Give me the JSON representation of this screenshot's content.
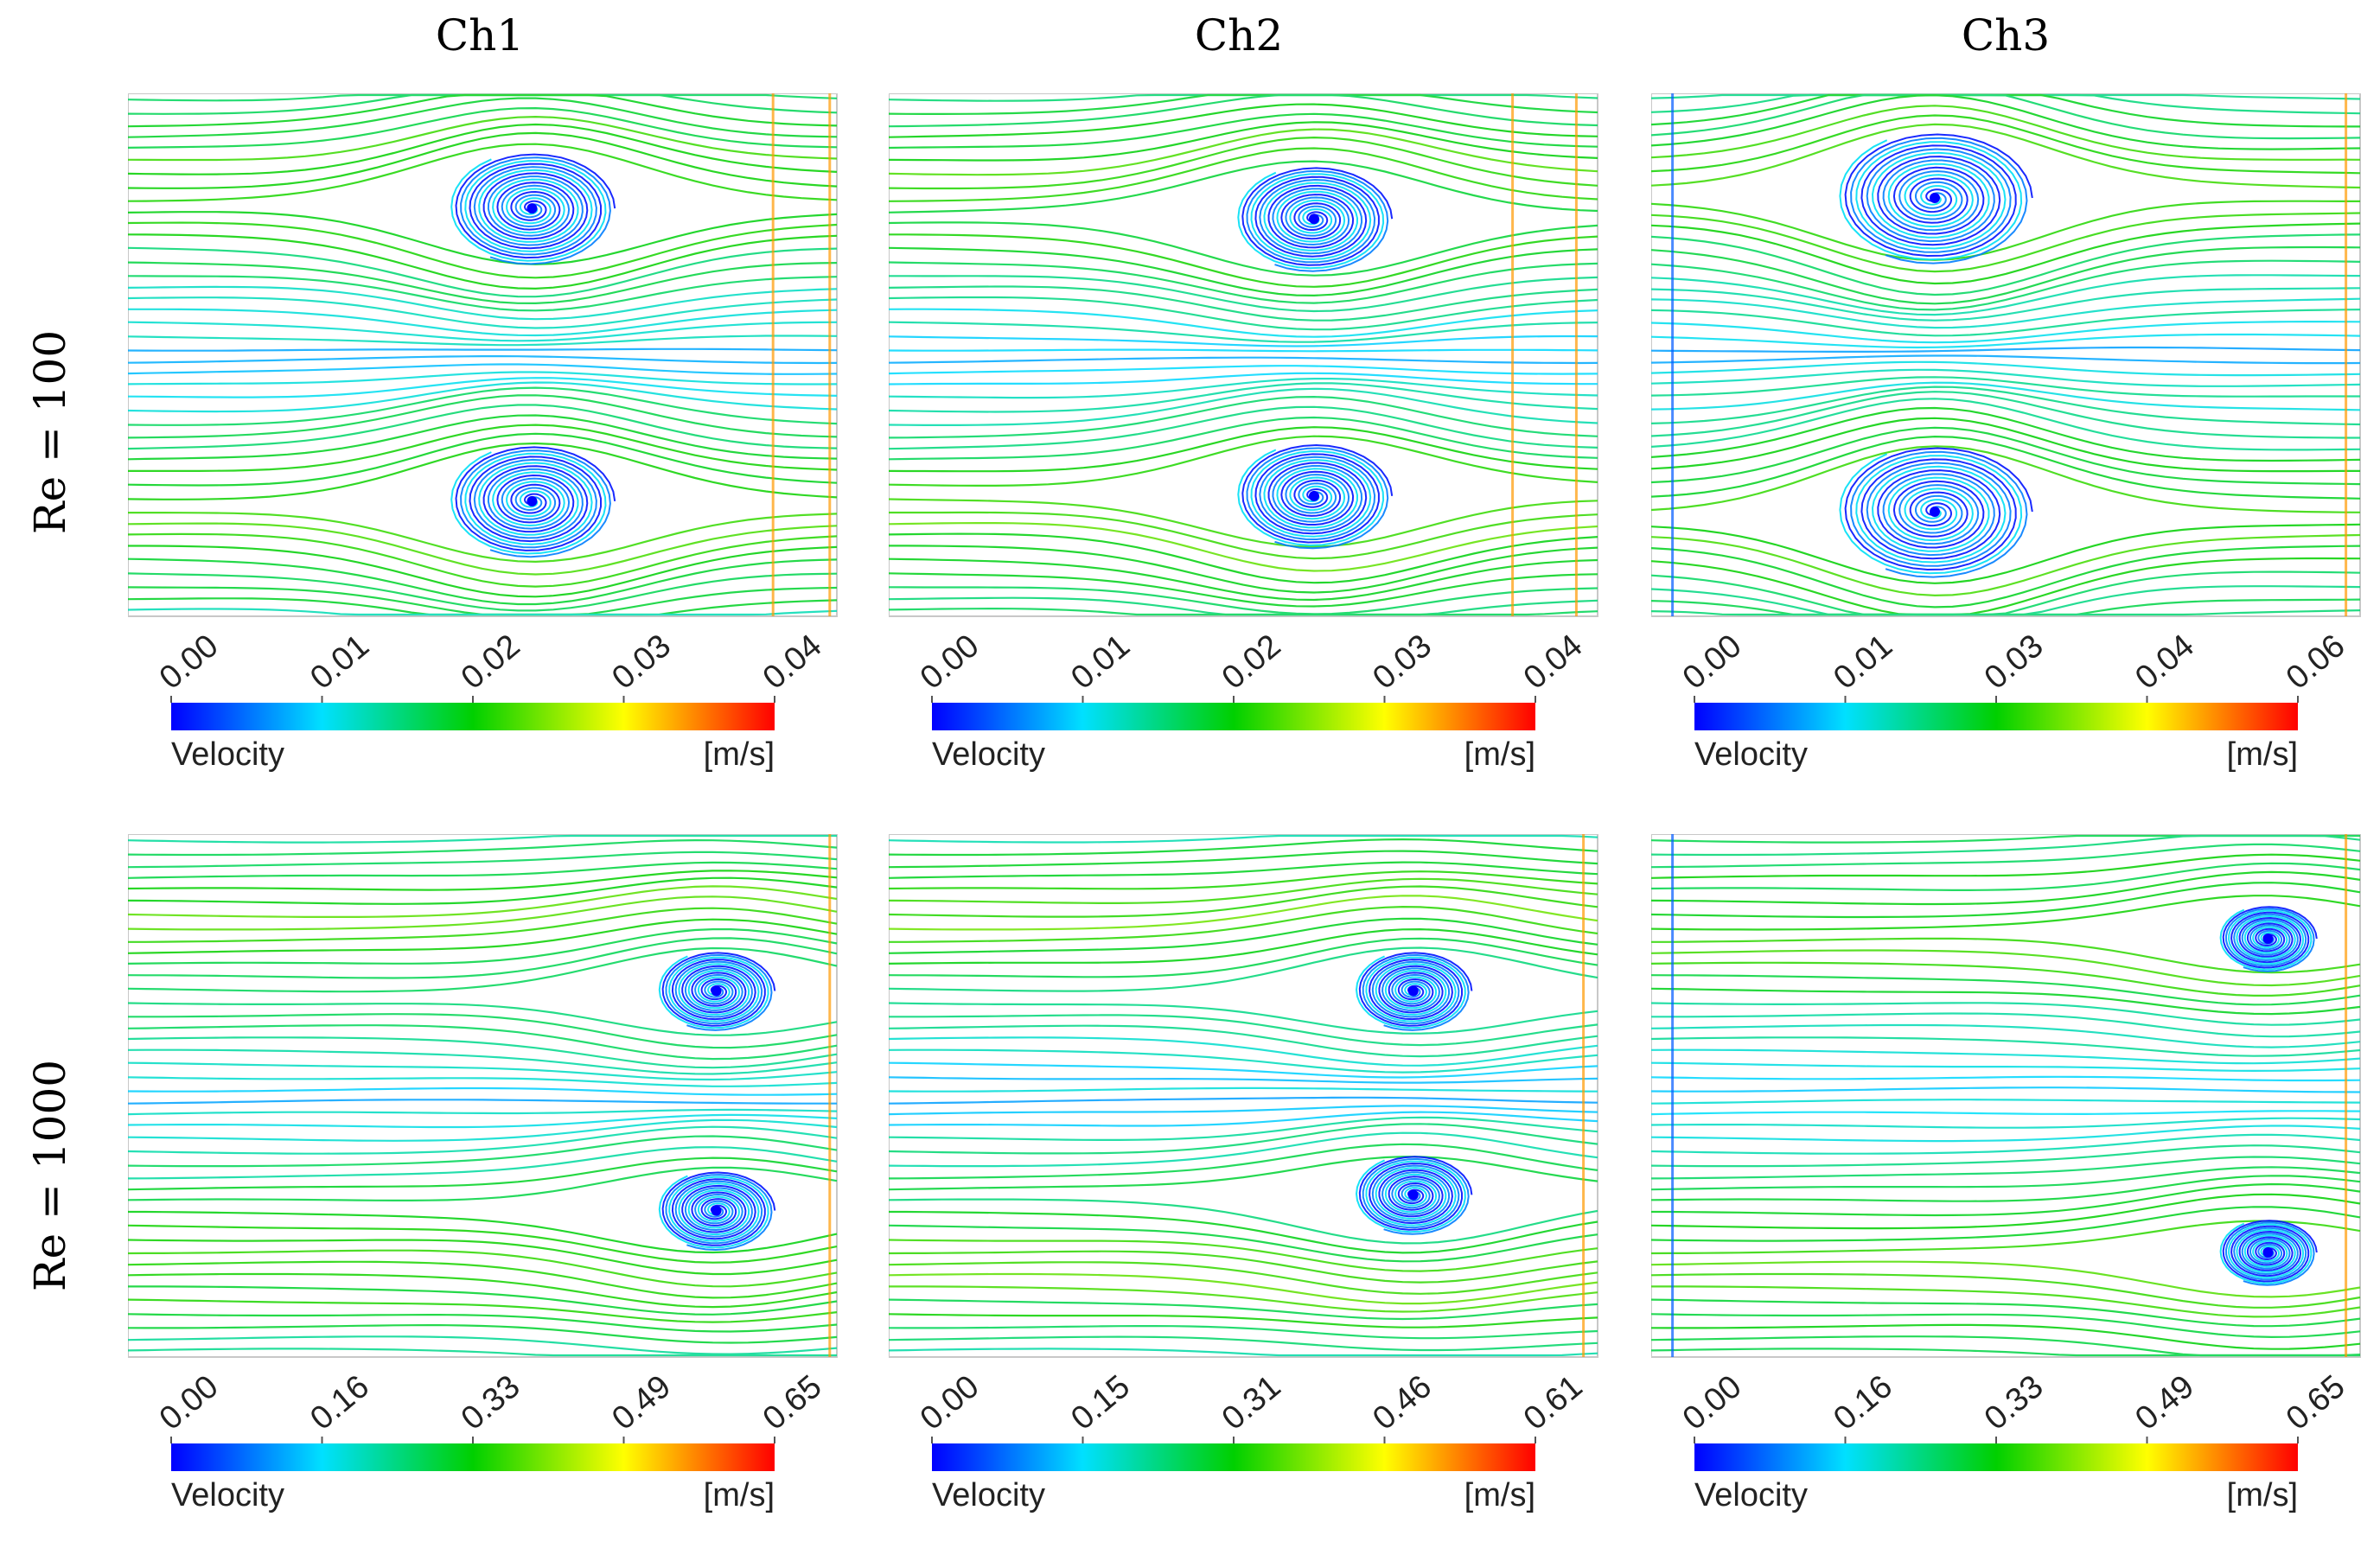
{
  "figure": {
    "columns": [
      "Ch1",
      "Ch2",
      "Ch3"
    ],
    "rows": [
      "Re = 100",
      "Re = 1000"
    ]
  },
  "chart_data": [
    {
      "type": "streamline",
      "channel": "Ch1",
      "reynolds": "Re = 100",
      "colorbar": {
        "label": "Velocity",
        "unit": "[m/s]",
        "ticks": [
          "0.00",
          "0.01",
          "0.02",
          "0.03",
          "0.04"
        ],
        "range": [
          0,
          0.04
        ],
        "colormap": [
          "#0000ff",
          "#00e0ff",
          "#00d000",
          "#ffff00",
          "#ff0000"
        ]
      },
      "vortices": [
        {
          "x": 0.57,
          "y": 0.22,
          "size": 0.17
        },
        {
          "x": 0.57,
          "y": 0.78,
          "size": 0.17
        }
      ],
      "outlet_lines": [
        0.91,
        0.99
      ]
    },
    {
      "type": "streamline",
      "channel": "Ch2",
      "reynolds": "Re = 100",
      "colorbar": {
        "label": "Velocity",
        "unit": "[m/s]",
        "ticks": [
          "0.00",
          "0.01",
          "0.02",
          "0.03",
          "0.04"
        ],
        "range": [
          0,
          0.04
        ],
        "colormap": [
          "#0000ff",
          "#00e0ff",
          "#00d000",
          "#ffff00",
          "#ff0000"
        ]
      },
      "vortices": [
        {
          "x": 0.6,
          "y": 0.24,
          "size": 0.16
        },
        {
          "x": 0.6,
          "y": 0.77,
          "size": 0.16
        }
      ],
      "outlet_lines": [
        0.88,
        0.97
      ]
    },
    {
      "type": "streamline",
      "channel": "Ch3",
      "reynolds": "Re = 100",
      "colorbar": {
        "label": "Velocity",
        "unit": "[m/s]",
        "ticks": [
          "0.00",
          "0.01",
          "0.03",
          "0.04",
          "0.06"
        ],
        "range": [
          0,
          0.06
        ],
        "colormap": [
          "#0000ff",
          "#00e0ff",
          "#00d000",
          "#ffff00",
          "#ff0000"
        ]
      },
      "vortices": [
        {
          "x": 0.4,
          "y": 0.2,
          "size": 0.2
        },
        {
          "x": 0.4,
          "y": 0.8,
          "size": 0.2
        }
      ],
      "outlet_lines": [
        0.03,
        0.98
      ]
    },
    {
      "type": "streamline",
      "channel": "Ch1",
      "reynolds": "Re = 1000",
      "colorbar": {
        "label": "Velocity",
        "unit": "[m/s]",
        "ticks": [
          "0.00",
          "0.16",
          "0.33",
          "0.49",
          "0.65"
        ],
        "range": [
          0,
          0.65
        ],
        "colormap": [
          "#0000ff",
          "#00e0ff",
          "#00d000",
          "#ffff00",
          "#ff0000"
        ]
      },
      "vortices": [
        {
          "x": 0.83,
          "y": 0.3,
          "size": 0.12
        },
        {
          "x": 0.83,
          "y": 0.72,
          "size": 0.12
        }
      ],
      "outlet_lines": [
        0.99
      ]
    },
    {
      "type": "streamline",
      "channel": "Ch2",
      "reynolds": "Re = 1000",
      "colorbar": {
        "label": "Velocity",
        "unit": "[m/s]",
        "ticks": [
          "0.00",
          "0.15",
          "0.31",
          "0.46",
          "0.61"
        ],
        "range": [
          0,
          0.61
        ],
        "colormap": [
          "#0000ff",
          "#00e0ff",
          "#00d000",
          "#ffff00",
          "#ff0000"
        ]
      },
      "vortices": [
        {
          "x": 0.74,
          "y": 0.3,
          "size": 0.12
        },
        {
          "x": 0.74,
          "y": 0.69,
          "size": 0.12
        }
      ],
      "outlet_lines": [
        0.98
      ]
    },
    {
      "type": "streamline",
      "channel": "Ch3",
      "reynolds": "Re = 1000",
      "colorbar": {
        "label": "Velocity",
        "unit": "[m/s]",
        "ticks": [
          "0.00",
          "0.16",
          "0.33",
          "0.49",
          "0.65"
        ],
        "range": [
          0,
          0.65
        ],
        "colormap": [
          "#0000ff",
          "#00e0ff",
          "#00d000",
          "#ffff00",
          "#ff0000"
        ]
      },
      "vortices": [
        {
          "x": 0.87,
          "y": 0.2,
          "size": 0.1
        },
        {
          "x": 0.87,
          "y": 0.8,
          "size": 0.1
        }
      ],
      "outlet_lines": [
        0.03,
        0.98
      ]
    }
  ]
}
